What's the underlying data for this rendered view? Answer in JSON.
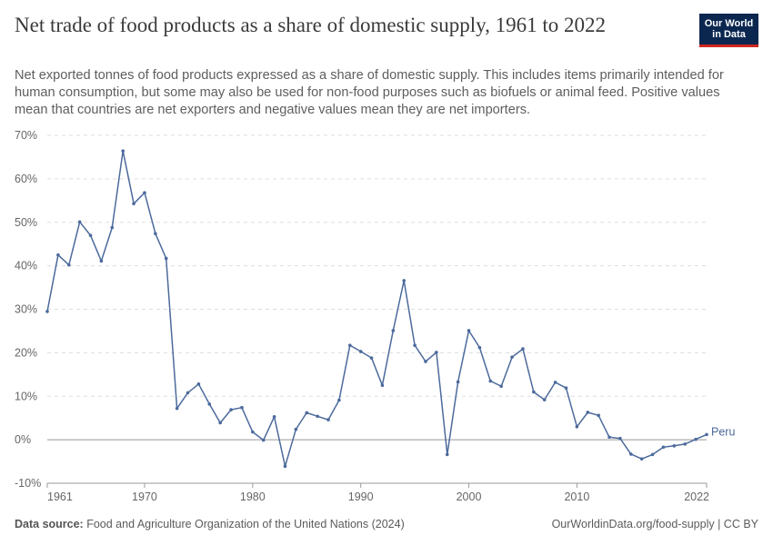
{
  "title": "Net trade of food products as a share of domestic supply, 1961 to 2022",
  "subtitle": "Net exported tonnes of food products expressed as a share of domestic supply. This includes items primarily intended for human consumption, but some may also be used for non-food purposes such as biofuels or animal feed. Positive values mean that countries are net exporters and negative values mean they are net importers.",
  "logo": {
    "line1": "Our World",
    "line2": "in Data"
  },
  "footer": {
    "source_label": "Data source:",
    "source_text": "Food and Agriculture Organization of the United Nations (2024)",
    "right_text": "OurWorldinData.org/food-supply | CC BY"
  },
  "colors": {
    "series": "#4c6a9c",
    "grid": "#dddddd",
    "zero": "#999999"
  },
  "chart_data": {
    "type": "line",
    "title": "Net trade of food products as a share of domestic supply, 1961 to 2022",
    "xlabel": "",
    "ylabel": "",
    "xlim": [
      1961,
      2022
    ],
    "ylim": [
      -10,
      70
    ],
    "x_ticks": [
      1961,
      1970,
      1980,
      1990,
      2000,
      2010,
      2022
    ],
    "y_ticks": [
      -10,
      0,
      10,
      20,
      30,
      40,
      50,
      60,
      70
    ],
    "y_tick_labels": [
      "-10%",
      "0%",
      "10%",
      "20%",
      "30%",
      "40%",
      "50%",
      "60%",
      "70%"
    ],
    "grid": true,
    "series": [
      {
        "name": "Peru",
        "x": [
          1961,
          1962,
          1963,
          1964,
          1965,
          1966,
          1967,
          1968,
          1969,
          1970,
          1971,
          1972,
          1973,
          1974,
          1975,
          1976,
          1977,
          1978,
          1979,
          1980,
          1981,
          1982,
          1983,
          1984,
          1985,
          1986,
          1987,
          1988,
          1989,
          1990,
          1991,
          1992,
          1993,
          1994,
          1995,
          1996,
          1997,
          1998,
          1999,
          2000,
          2001,
          2002,
          2003,
          2004,
          2005,
          2006,
          2007,
          2008,
          2009,
          2010,
          2011,
          2012,
          2013,
          2014,
          2015,
          2016,
          2017,
          2018,
          2019,
          2020,
          2021,
          2022
        ],
        "values": [
          29.5,
          42.5,
          40.2,
          50.1,
          47.0,
          41.1,
          48.8,
          66.4,
          54.3,
          56.8,
          47.4,
          41.7,
          7.2,
          10.8,
          12.8,
          8.2,
          3.9,
          6.9,
          7.4,
          1.8,
          -0.1,
          5.3,
          -6.1,
          2.4,
          6.2,
          5.4,
          4.6,
          9.1,
          21.7,
          20.3,
          18.8,
          12.5,
          25.1,
          36.6,
          21.7,
          18.0,
          20.1,
          -3.4,
          13.3,
          25.1,
          21.2,
          13.5,
          12.3,
          19.0,
          20.9,
          11.0,
          9.2,
          13.2,
          11.9,
          3.0,
          6.3,
          5.6,
          0.6,
          0.3,
          -3.3,
          -4.4,
          -3.4,
          -1.7,
          -1.4,
          -1.0,
          0.1,
          1.2
        ]
      }
    ]
  }
}
